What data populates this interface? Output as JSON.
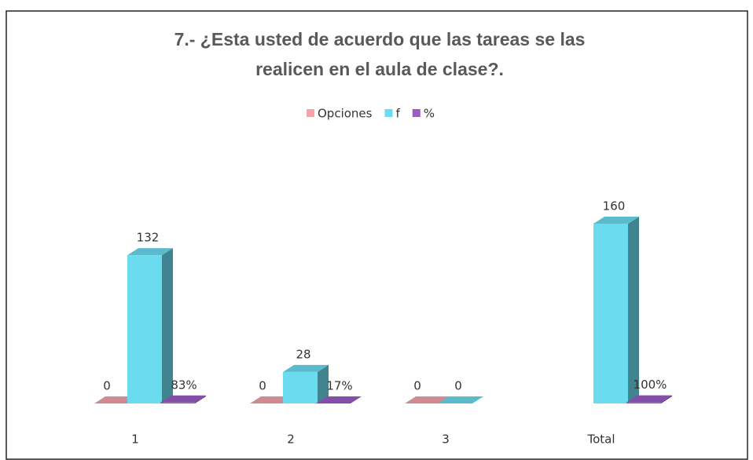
{
  "chart_data": {
    "type": "bar3d",
    "title": [
      "7.- ¿Esta usted de acuerdo que las tareas se las",
      "realicen en el aula de clase?."
    ],
    "categories": [
      "1",
      "2",
      "3",
      "Total"
    ],
    "series": [
      {
        "name": "Opciones",
        "color": "#f4a3aa",
        "values": [
          0,
          0,
          0,
          null
        ]
      },
      {
        "name": "f",
        "color": "#6bdcf0",
        "values": [
          132,
          28,
          0,
          160
        ]
      },
      {
        "name": "%",
        "color": "#9a5cc4",
        "values": [
          0.83,
          0.17,
          null,
          1
        ],
        "value_labels": [
          "83%",
          "17%",
          null,
          "100%"
        ]
      }
    ]
  }
}
